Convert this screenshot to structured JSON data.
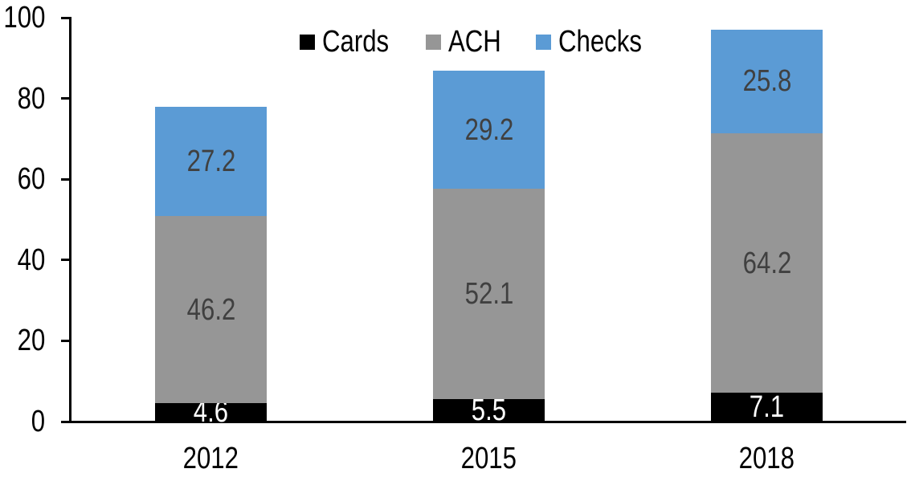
{
  "chart_data": {
    "type": "bar",
    "stacked": true,
    "title": "",
    "xlabel": "",
    "ylabel": "",
    "categories": [
      "2012",
      "2015",
      "2018"
    ],
    "series": [
      {
        "name": "Cards",
        "color": "#000000",
        "label_color": "#ffffff",
        "values": [
          4.6,
          5.5,
          7.1
        ]
      },
      {
        "name": "ACH",
        "color": "#969696",
        "label_color": "#404040",
        "values": [
          46.2,
          52.1,
          64.2
        ]
      },
      {
        "name": "Checks",
        "color": "#5B9BD5",
        "label_color": "#404040",
        "values": [
          27.2,
          29.2,
          25.8
        ]
      }
    ],
    "yticks": [
      0,
      20,
      40,
      60,
      80,
      100
    ],
    "ylim": [
      0,
      100
    ],
    "grid": false,
    "legend_position": "top-center",
    "axis_color": "#000000",
    "text_color": "#000000"
  }
}
